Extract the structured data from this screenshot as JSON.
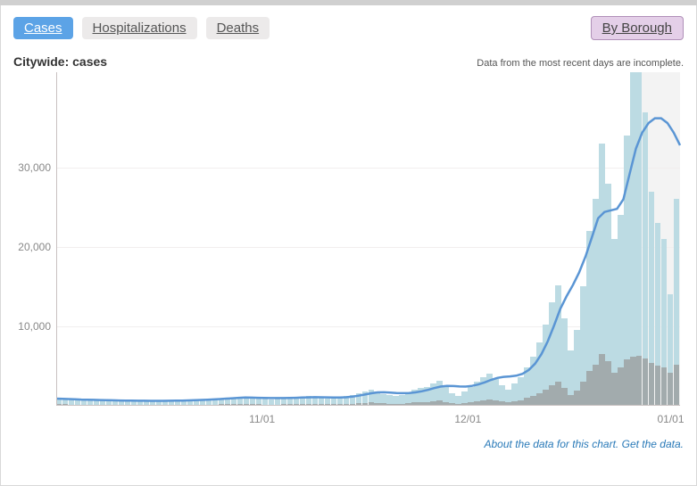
{
  "tabs": {
    "cases": "Cases",
    "hospitalizations": "Hospitalizations",
    "deaths": "Deaths",
    "by_borough": "By Borough"
  },
  "subheader": {
    "title": "Citywide: cases",
    "note": "Data from the most recent days are incomplete."
  },
  "footer": {
    "about": "About the data for this chart.",
    "get": "Get the data."
  },
  "chart": {
    "type": "combo-bar-line",
    "ylim": [
      0,
      42000
    ],
    "yticks": [
      10000,
      20000,
      30000
    ],
    "ytick_labels": [
      "10,000",
      "20,000",
      "30,000"
    ],
    "xtick_positions": [
      0.33,
      0.66,
      0.985
    ],
    "xtick_labels": [
      "11/01",
      "12/01",
      "01/01"
    ],
    "background_color": "#ffffff",
    "grid_color": "#f1eeee",
    "axis_color": "#c8c0c0",
    "incomplete_band": {
      "start": 0.93,
      "end": 1.0,
      "color": "#f3f3f3"
    },
    "bars_primary": {
      "color": "#bcdbe3",
      "values": [
        1000,
        900,
        800,
        750,
        700,
        720,
        680,
        650,
        640,
        600,
        590,
        580,
        570,
        560,
        550,
        560,
        570,
        580,
        600,
        620,
        640,
        660,
        700,
        750,
        800,
        850,
        900,
        950,
        1000,
        1050,
        1100,
        1000,
        900,
        850,
        800,
        850,
        900,
        950,
        1000,
        1100,
        1200,
        1100,
        1000,
        950,
        900,
        1000,
        1200,
        1400,
        1600,
        1800,
        2000,
        1800,
        1500,
        1300,
        1200,
        1400,
        1700,
        2000,
        2200,
        2400,
        2800,
        3200,
        2400,
        1600,
        1200,
        1800,
        2400,
        3000,
        3600,
        4000,
        3400,
        2600,
        2000,
        2800,
        3600,
        4800,
        6200,
        8000,
        10200,
        13000,
        15200,
        11000,
        7000,
        9500,
        15000,
        22000,
        26000,
        33000,
        28000,
        21000,
        24000,
        34000,
        44000,
        44000,
        37000,
        27000,
        23000,
        21000,
        14000,
        26000
      ]
    },
    "bars_secondary": {
      "color": "#969393",
      "opacity": 0.68,
      "values": [
        200,
        180,
        160,
        150,
        140,
        140,
        140,
        130,
        130,
        120,
        120,
        120,
        115,
        115,
        110,
        110,
        112,
        114,
        118,
        122,
        126,
        130,
        138,
        148,
        158,
        168,
        178,
        188,
        200,
        210,
        220,
        200,
        180,
        170,
        160,
        170,
        180,
        190,
        200,
        220,
        240,
        220,
        200,
        190,
        180,
        200,
        240,
        280,
        320,
        360,
        400,
        360,
        300,
        260,
        240,
        280,
        340,
        400,
        440,
        480,
        560,
        640,
        480,
        320,
        240,
        360,
        480,
        600,
        720,
        800,
        680,
        520,
        400,
        560,
        720,
        960,
        1240,
        1600,
        2040,
        2600,
        3000,
        2200,
        1400,
        1900,
        3000,
        4400,
        5200,
        6500,
        5600,
        4200,
        4800,
        5800,
        6200,
        6300,
        6000,
        5400,
        5000,
        4800,
        4200,
        5200
      ]
    },
    "line": {
      "color": "#5a95d4",
      "width": 2.5,
      "values": [
        900,
        870,
        840,
        810,
        780,
        760,
        740,
        720,
        700,
        680,
        665,
        650,
        640,
        630,
        625,
        622,
        620,
        622,
        628,
        638,
        652,
        670,
        695,
        725,
        760,
        800,
        845,
        895,
        945,
        995,
        1035,
        1025,
        1005,
        985,
        970,
        965,
        968,
        980,
        1000,
        1030,
        1060,
        1075,
        1070,
        1050,
        1030,
        1030,
        1070,
        1150,
        1270,
        1420,
        1570,
        1680,
        1700,
        1660,
        1610,
        1580,
        1600,
        1680,
        1820,
        2000,
        2220,
        2420,
        2500,
        2480,
        2430,
        2420,
        2500,
        2680,
        2940,
        3260,
        3500,
        3640,
        3700,
        3780,
        4020,
        4500,
        5300,
        6500,
        8100,
        10100,
        12200,
        13800,
        15200,
        16800,
        18800,
        21200,
        23600,
        24400,
        24600,
        24800,
        26000,
        29200,
        32400,
        34400,
        35600,
        36200,
        36200,
        35600,
        34400,
        32800
      ]
    }
  }
}
